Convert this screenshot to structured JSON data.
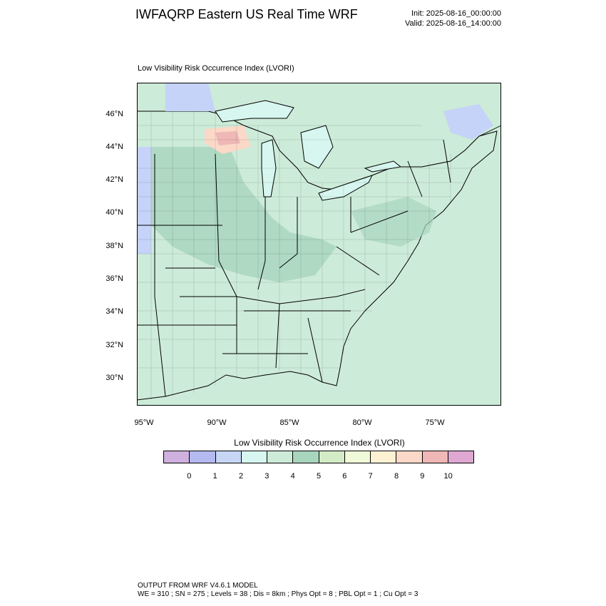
{
  "header": {
    "title": "IWFAQRP Eastern US Real Time WRF",
    "init": "Init: 2025-08-16_00:00:00",
    "valid": "Valid: 2025-08-16_14:00:00"
  },
  "map": {
    "subtitle": "Low Visibility Risk Occurrence Index   (LVORI)",
    "lat_labels": [
      "46°N",
      "44°N",
      "42°N",
      "40°N",
      "38°N",
      "36°N",
      "34°N",
      "32°N",
      "30°N"
    ],
    "lon_labels": [
      "95°W",
      "90°W",
      "85°W",
      "80°W",
      "75°W"
    ],
    "colors": {
      "land": "#cdebd9",
      "land_dark": "#a8d5bd",
      "ocean": "#cdebd9",
      "water": "#d6f6ef",
      "lake_blue": "#c4d3f7",
      "boundary": "#000000"
    }
  },
  "colorbar": {
    "title": "Low Visibility Risk Occurrence Index  (LVORI)",
    "colors": [
      "#cfb0de",
      "#b4b9ef",
      "#c8d6f5",
      "#d6f6ef",
      "#cdebd9",
      "#a8d5bd",
      "#d3ecc6",
      "#f0fad8",
      "#fdf1d3",
      "#fbd8c7",
      "#efb7b5",
      "#dea8d2"
    ],
    "labels": [
      "0",
      "1",
      "2",
      "3",
      "4",
      "5",
      "6",
      "7",
      "8",
      "9",
      "10"
    ]
  },
  "footer": {
    "line1": "OUTPUT FROM WRF V4.6.1 MODEL",
    "line2": "WE = 310 ; SN = 275 ; Levels = 38 ; Dis = 8km ; Phys Opt = 8 ; PBL Opt = 1 ; Cu Opt = 3"
  }
}
